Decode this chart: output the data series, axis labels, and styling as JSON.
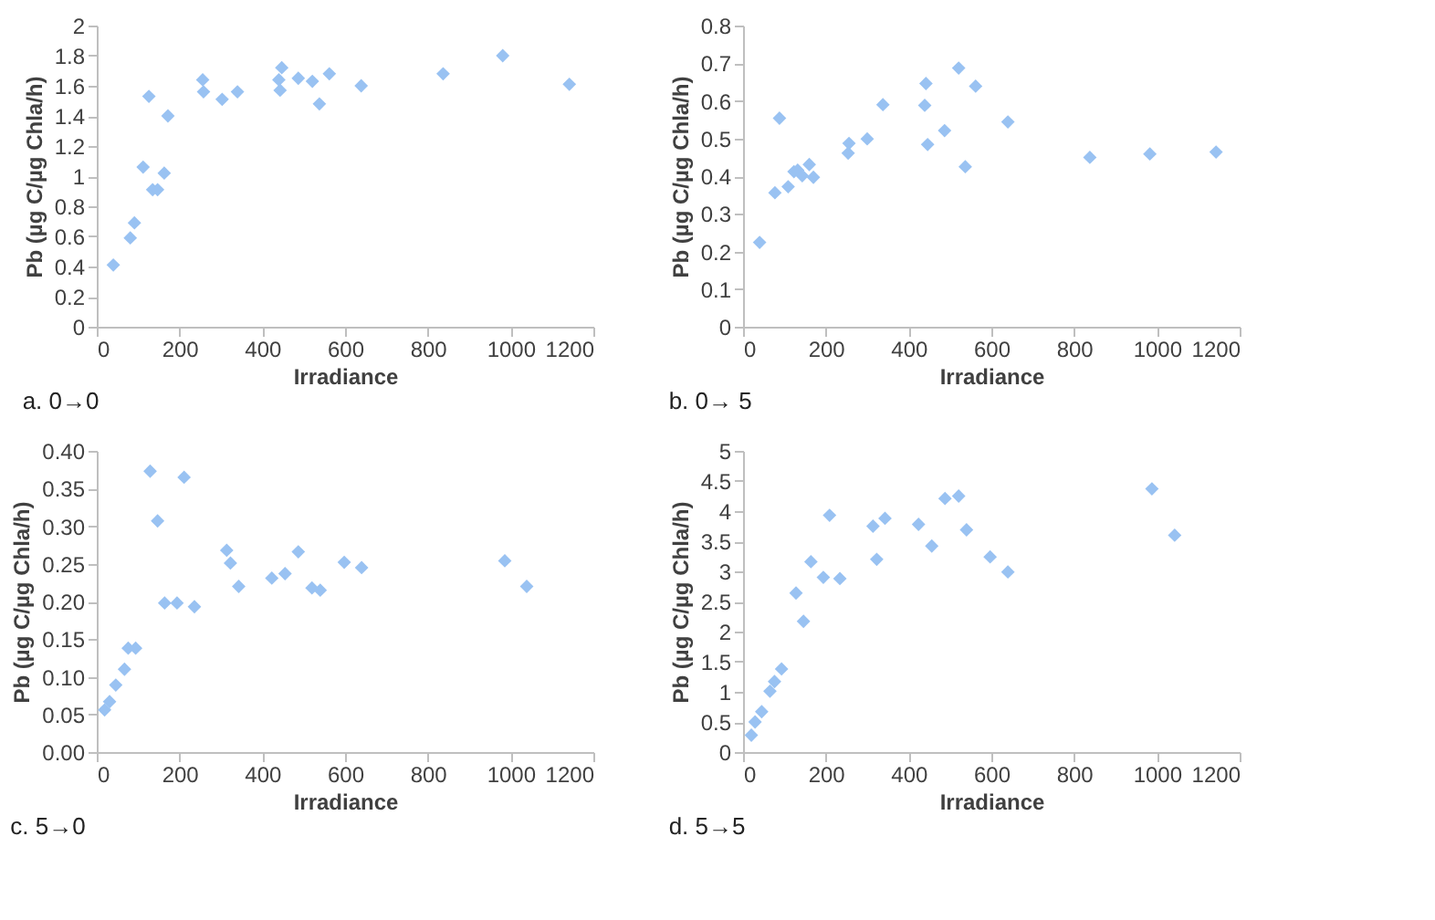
{
  "chart_data": [
    {
      "type": "scatter",
      "xlabel": "Irradiance",
      "ylabel": "Pb (µg C/µg Chla/h)",
      "annotations": [
        "a. 0→0"
      ],
      "marker": "diamond",
      "grid": false,
      "legend": false,
      "xlim": [
        0,
        1200
      ],
      "xticks": [
        0,
        200,
        400,
        600,
        800,
        1000,
        1200
      ],
      "ylim": [
        0,
        2
      ],
      "yticks": [
        0,
        0.2,
        0.4,
        0.6,
        0.8,
        1,
        1.2,
        1.4,
        1.6,
        1.8,
        2
      ],
      "series": [
        {
          "color": "#99c2f2",
          "x": [
            40,
            81,
            91,
            112,
            126,
            135,
            147,
            163,
            172,
            256,
            258,
            303,
            340,
            440,
            447,
            443,
            487,
            521,
            538,
            562,
            639,
            837,
            981,
            1142
          ],
          "values": [
            0.41,
            0.59,
            0.69,
            1.06,
            1.53,
            0.91,
            0.91,
            1.02,
            1.4,
            1.64,
            1.56,
            1.51,
            1.56,
            1.64,
            1.72,
            1.57,
            1.65,
            1.63,
            1.48,
            1.68,
            1.6,
            1.68,
            1.8,
            1.61
          ]
        }
      ]
    },
    {
      "type": "scatter",
      "xlabel": "Irradiance",
      "ylabel": "Pb (µg C/µg Chla/h)",
      "annotations": [
        "b. 0→ 5"
      ],
      "marker": "diamond",
      "grid": false,
      "legend": false,
      "xlim": [
        0,
        1200
      ],
      "xticks": [
        0,
        200,
        400,
        600,
        800,
        1000,
        1200
      ],
      "ylim": [
        0,
        0.8
      ],
      "yticks": [
        0,
        0.1,
        0.2,
        0.3,
        0.4,
        0.5,
        0.6,
        0.7,
        0.8
      ],
      "series": [
        {
          "color": "#99c2f2",
          "x": [
            40,
            77,
            88,
            109,
            123,
            132,
            143,
            160,
            170,
            254,
            256,
            300,
            338,
            439,
            442,
            446,
            487,
            521,
            537,
            562,
            640,
            838,
            983,
            1143
          ],
          "values": [
            0.224,
            0.356,
            0.554,
            0.372,
            0.412,
            0.416,
            0.401,
            0.431,
            0.397,
            0.461,
            0.487,
            0.499,
            0.59,
            0.588,
            0.646,
            0.484,
            0.521,
            0.687,
            0.425,
            0.639,
            0.544,
            0.45,
            0.459,
            0.464
          ]
        }
      ]
    },
    {
      "type": "scatter",
      "xlabel": "Irradiance",
      "ylabel": "Pb (µg C/µg Chla/h)",
      "annotations": [
        "c. 5→0"
      ],
      "marker": "diamond",
      "grid": false,
      "legend": false,
      "xlim": [
        0,
        1200
      ],
      "xticks": [
        0,
        200,
        400,
        600,
        800,
        1000,
        1200
      ],
      "ylim": [
        0,
        0.4
      ],
      "yticks": [
        {
          "value": 0,
          "label": "0.00"
        },
        {
          "value": 0.05,
          "label": "0.05"
        },
        {
          "value": 0.1,
          "label": "0.10"
        },
        {
          "value": 0.15,
          "label": "0.15"
        },
        {
          "value": 0.2,
          "label": "0.20"
        },
        {
          "value": 0.25,
          "label": "0.25"
        },
        {
          "value": 0.3,
          "label": "0.30"
        },
        {
          "value": 0.35,
          "label": "0.35"
        },
        {
          "value": 0.4,
          "label": "0.40"
        }
      ],
      "series": [
        {
          "color": "#99c2f2",
          "x": [
            19,
            31,
            46,
            67,
            76,
            94,
            129,
            147,
            164,
            194,
            211,
            236,
            314,
            323,
            343,
            423,
            455,
            487,
            520,
            540,
            598,
            640,
            986,
            1039
          ],
          "values": [
            0.056,
            0.067,
            0.089,
            0.11,
            0.138,
            0.138,
            0.373,
            0.307,
            0.198,
            0.198,
            0.365,
            0.193,
            0.268,
            0.251,
            0.22,
            0.231,
            0.237,
            0.266,
            0.218,
            0.215,
            0.252,
            0.245,
            0.254,
            0.22
          ]
        }
      ]
    },
    {
      "type": "scatter",
      "xlabel": "Irradiance",
      "ylabel": "Pb (µg C/µg Chla/h)",
      "annotations": [
        "d. 5→5"
      ],
      "marker": "diamond",
      "grid": false,
      "legend": false,
      "xlim": [
        0,
        1200
      ],
      "xticks": [
        0,
        200,
        400,
        600,
        800,
        1000,
        1200
      ],
      "ylim": [
        0,
        5
      ],
      "yticks": [
        0,
        0.5,
        1,
        1.5,
        2,
        2.5,
        3,
        3.5,
        4,
        4.5,
        5
      ],
      "series": [
        {
          "color": "#99c2f2",
          "x": [
            20,
            29,
            45,
            65,
            76,
            93,
            128,
            146,
            164,
            194,
            209,
            234,
            314,
            323,
            343,
            424,
            456,
            488,
            521,
            540,
            597,
            640,
            988,
            1043
          ],
          "values": [
            0.28,
            0.5,
            0.67,
            1.01,
            1.17,
            1.38,
            2.64,
            2.17,
            3.16,
            2.9,
            3.93,
            2.88,
            3.75,
            3.2,
            3.88,
            3.78,
            3.42,
            4.21,
            4.25,
            3.69,
            3.24,
            2.99,
            4.37,
            3.6
          ]
        }
      ]
    }
  ]
}
